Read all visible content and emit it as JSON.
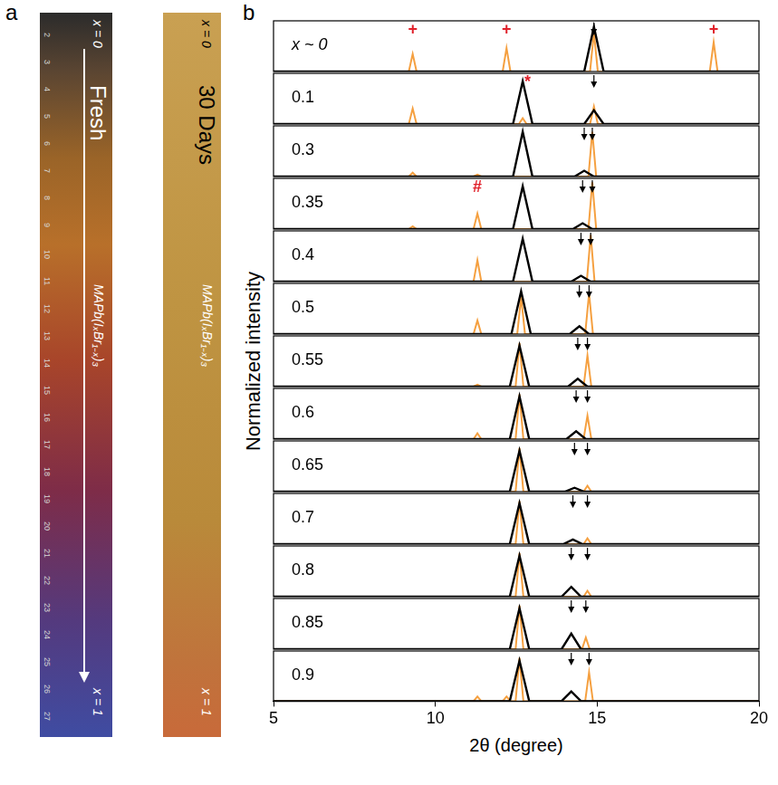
{
  "figure_a": {
    "label": "a",
    "strips": [
      {
        "title": "Fresh",
        "top_label": "x = 0",
        "bottom_label": "x = 1",
        "formula": "MAPb(IₓBr₁₋ₓ)₃",
        "ruler_labels": [
          2,
          3,
          4,
          5,
          6,
          7,
          8,
          9,
          10,
          11,
          12,
          13,
          14,
          15,
          16,
          17,
          18,
          19,
          20,
          21,
          22,
          23,
          24,
          25,
          26,
          27
        ]
      },
      {
        "title": "30 Days",
        "top_label": "x = 0",
        "bottom_label": "x = 1",
        "formula": "MAPb(IₓBr₁₋ₓ)₃"
      }
    ]
  },
  "chart_data": {
    "type": "line",
    "label": "b",
    "x_label": "2θ (degree)",
    "y_label": "Normalized intensity",
    "xlim": [
      5,
      20
    ],
    "xticks": [
      5,
      10,
      15,
      20
    ],
    "ylim": [
      0,
      1.3
    ],
    "yticks": [],
    "tick_labels": "x",
    "grid": false,
    "panels": [
      {
        "name": "x ~ 0",
        "arrows": [
          14.9
        ],
        "markers": [
          {
            "x": 9.3,
            "text": "+",
            "color": "#e0202a"
          },
          {
            "x": 12.2,
            "text": "+",
            "color": "#e0202a"
          },
          {
            "x": 18.6,
            "text": "+",
            "color": "#e0202a"
          }
        ],
        "series": [
          {
            "color": "#000000",
            "x": [
              5,
              14.6,
              14.9,
              15.2,
              20
            ],
            "values": [
              0,
              0,
              1.15,
              0,
              0
            ]
          },
          {
            "color": "#f5a040",
            "x": [
              5,
              9.18,
              9.3,
              9.42,
              12.08,
              12.2,
              12.32,
              14.78,
              14.9,
              15.02,
              18.48,
              18.6,
              18.72,
              20
            ],
            "values": [
              0,
              0,
              0.45,
              0,
              0,
              0.6,
              0,
              0,
              1.0,
              0,
              0,
              0.75,
              0,
              0
            ]
          }
        ]
      },
      {
        "name": "0.1",
        "arrows": [
          14.9
        ],
        "markers": [
          {
            "x": 12.85,
            "text": "*",
            "color": "#e0202a"
          }
        ],
        "series": [
          {
            "color": "#000000",
            "x": [
              5,
              12.4,
              12.7,
              13.0,
              14.6,
              14.9,
              15.2,
              20
            ],
            "values": [
              0,
              0,
              1.1,
              0,
              0,
              0.35,
              0,
              0
            ]
          },
          {
            "color": "#f5a040",
            "x": [
              5,
              9.18,
              9.3,
              9.42,
              12.58,
              12.7,
              12.82,
              14.78,
              14.9,
              15.02,
              20
            ],
            "values": [
              0,
              0,
              0.4,
              0,
              0,
              0.15,
              0,
              0,
              0.45,
              0,
              0
            ]
          }
        ]
      },
      {
        "name": "0.3",
        "arrows": [
          14.6,
          14.85
        ],
        "markers": [],
        "series": [
          {
            "color": "#000000",
            "x": [
              5,
              12.4,
              12.7,
              13.0,
              14.3,
              14.6,
              14.9,
              20
            ],
            "values": [
              0,
              0,
              1.15,
              0,
              0,
              0.15,
              0,
              0
            ]
          },
          {
            "color": "#f5a040",
            "x": [
              5,
              9.18,
              9.3,
              9.42,
              11.18,
              11.3,
              11.42,
              14.73,
              14.85,
              14.97,
              20
            ],
            "values": [
              0,
              0,
              0.1,
              0,
              0,
              0.05,
              0,
              0,
              1.15,
              0,
              0
            ]
          }
        ]
      },
      {
        "name": "0.35",
        "arrows": [
          14.55,
          14.85
        ],
        "markers": [
          {
            "x": 11.3,
            "text": "#",
            "color": "#e0202a"
          }
        ],
        "series": [
          {
            "color": "#000000",
            "x": [
              5,
              12.4,
              12.7,
              13.0,
              14.25,
              14.55,
              14.85,
              20
            ],
            "values": [
              0,
              0,
              1.1,
              0,
              0,
              0.15,
              0,
              0
            ]
          },
          {
            "color": "#f5a040",
            "x": [
              5,
              9.18,
              9.3,
              9.42,
              11.18,
              11.3,
              11.42,
              14.73,
              14.85,
              14.97,
              20
            ],
            "values": [
              0,
              0,
              0.07,
              0,
              0,
              0.4,
              0,
              0,
              1.2,
              0,
              0
            ]
          }
        ]
      },
      {
        "name": "0.4",
        "arrows": [
          14.5,
          14.8
        ],
        "markers": [],
        "series": [
          {
            "color": "#000000",
            "x": [
              5,
              12.4,
              12.7,
              13.0,
              14.2,
              14.5,
              14.8,
              20
            ],
            "values": [
              0,
              0,
              1.1,
              0,
              0,
              0.15,
              0,
              0
            ]
          },
          {
            "color": "#f5a040",
            "x": [
              5,
              11.18,
              11.3,
              11.42,
              14.68,
              14.8,
              14.92,
              20
            ],
            "values": [
              0,
              0,
              0.55,
              0,
              0,
              1.2,
              0,
              0
            ]
          }
        ]
      },
      {
        "name": "0.5",
        "arrows": [
          14.45,
          14.75
        ],
        "markers": [],
        "series": [
          {
            "color": "#000000",
            "x": [
              5,
              12.35,
              12.65,
              12.95,
              14.15,
              14.45,
              14.75,
              20
            ],
            "values": [
              0,
              0,
              1.1,
              0,
              0,
              0.2,
              0,
              0
            ]
          },
          {
            "color": "#f5a040",
            "x": [
              5,
              11.18,
              11.3,
              11.42,
              12.53,
              12.65,
              12.77,
              14.63,
              14.75,
              14.87,
              20
            ],
            "values": [
              0,
              0,
              0.35,
              0,
              0,
              0.95,
              0,
              0,
              1.05,
              0,
              0
            ]
          }
        ]
      },
      {
        "name": "0.55",
        "arrows": [
          14.4,
          14.7
        ],
        "markers": [],
        "series": [
          {
            "color": "#000000",
            "x": [
              5,
              12.3,
              12.6,
              12.9,
              14.1,
              14.4,
              14.7,
              20
            ],
            "values": [
              0,
              0,
              1.05,
              0,
              0,
              0.2,
              0,
              0
            ]
          },
          {
            "color": "#f5a040",
            "x": [
              5,
              11.18,
              11.3,
              11.42,
              12.48,
              12.6,
              12.72,
              14.58,
              14.7,
              14.82,
              20
            ],
            "values": [
              0,
              0,
              0.05,
              0,
              0,
              1.12,
              0,
              0,
              0.8,
              0,
              0
            ]
          }
        ]
      },
      {
        "name": "0.6",
        "arrows": [
          14.35,
          14.7
        ],
        "markers": [],
        "series": [
          {
            "color": "#000000",
            "x": [
              5,
              12.3,
              12.6,
              12.9,
              14.05,
              14.35,
              14.65,
              20
            ],
            "values": [
              0,
              0,
              1.1,
              0,
              0,
              0.2,
              0,
              0
            ]
          },
          {
            "color": "#f5a040",
            "x": [
              5,
              11.18,
              11.3,
              11.42,
              12.48,
              12.6,
              12.72,
              14.58,
              14.7,
              14.82,
              20
            ],
            "values": [
              0,
              0,
              0.15,
              0,
              0,
              1.15,
              0,
              0,
              0.6,
              0,
              0
            ]
          }
        ]
      },
      {
        "name": "0.65",
        "arrows": [
          14.3,
          14.7
        ],
        "markers": [],
        "series": [
          {
            "color": "#000000",
            "x": [
              5,
              12.3,
              12.6,
              12.9,
              14.0,
              14.3,
              14.6,
              20
            ],
            "values": [
              0,
              0,
              1.05,
              0,
              0,
              0.1,
              0,
              0
            ]
          },
          {
            "color": "#f5a040",
            "x": [
              5,
              12.48,
              12.6,
              12.72,
              14.58,
              14.7,
              14.82,
              20
            ],
            "values": [
              0,
              0,
              1.12,
              0,
              0,
              0.15,
              0,
              0
            ]
          }
        ]
      },
      {
        "name": "0.7",
        "arrows": [
          14.25,
          14.7
        ],
        "markers": [],
        "series": [
          {
            "color": "#000000",
            "x": [
              5,
              12.3,
              12.6,
              12.9,
              13.95,
              14.25,
              14.55,
              20
            ],
            "values": [
              0,
              0,
              1.05,
              0,
              0,
              0.12,
              0,
              0
            ]
          },
          {
            "color": "#f5a040",
            "x": [
              5,
              12.48,
              12.6,
              12.72,
              14.58,
              14.7,
              14.82,
              20
            ],
            "values": [
              0,
              0,
              1.1,
              0,
              0,
              0.15,
              0,
              0
            ]
          }
        ]
      },
      {
        "name": "0.8",
        "arrows": [
          14.2,
          14.7
        ],
        "markers": [],
        "series": [
          {
            "color": "#000000",
            "x": [
              5,
              12.3,
              12.6,
              12.9,
              13.9,
              14.2,
              14.5,
              20
            ],
            "values": [
              0,
              0,
              1.05,
              0,
              0,
              0.25,
              0,
              0
            ]
          },
          {
            "color": "#f5a040",
            "x": [
              5,
              12.48,
              12.6,
              12.72,
              14.58,
              14.7,
              14.82,
              20
            ],
            "values": [
              0,
              0,
              1.12,
              0,
              0,
              0.15,
              0,
              0
            ]
          }
        ]
      },
      {
        "name": "0.85",
        "arrows": [
          14.2,
          14.65
        ],
        "markers": [],
        "series": [
          {
            "color": "#000000",
            "x": [
              5,
              12.3,
              12.6,
              12.9,
              13.9,
              14.2,
              14.5,
              20
            ],
            "values": [
              0,
              0,
              1.05,
              0,
              0,
              0.4,
              0,
              0
            ]
          },
          {
            "color": "#f5a040",
            "x": [
              5,
              12.48,
              12.6,
              12.72,
              14.53,
              14.65,
              14.77,
              20
            ],
            "values": [
              0,
              0,
              1.12,
              0,
              0,
              0.3,
              0,
              0
            ]
          }
        ]
      },
      {
        "name": "0.9",
        "arrows": [
          14.2,
          14.75
        ],
        "markers": [],
        "series": [
          {
            "color": "#000000",
            "x": [
              5,
              12.3,
              12.6,
              12.9,
              13.9,
              14.2,
              14.5,
              20
            ],
            "values": [
              0,
              0,
              1.05,
              0,
              0,
              0.25,
              0,
              0
            ]
          },
          {
            "color": "#f5a040",
            "x": [
              5,
              11.18,
              11.3,
              11.42,
              12.08,
              12.2,
              12.32,
              12.48,
              12.6,
              12.72,
              14.63,
              14.75,
              14.87,
              20
            ],
            "values": [
              0,
              0,
              0.12,
              0,
              0,
              0.12,
              0,
              0,
              1.12,
              0,
              0,
              0.75,
              0,
              0
            ]
          }
        ]
      }
    ]
  }
}
